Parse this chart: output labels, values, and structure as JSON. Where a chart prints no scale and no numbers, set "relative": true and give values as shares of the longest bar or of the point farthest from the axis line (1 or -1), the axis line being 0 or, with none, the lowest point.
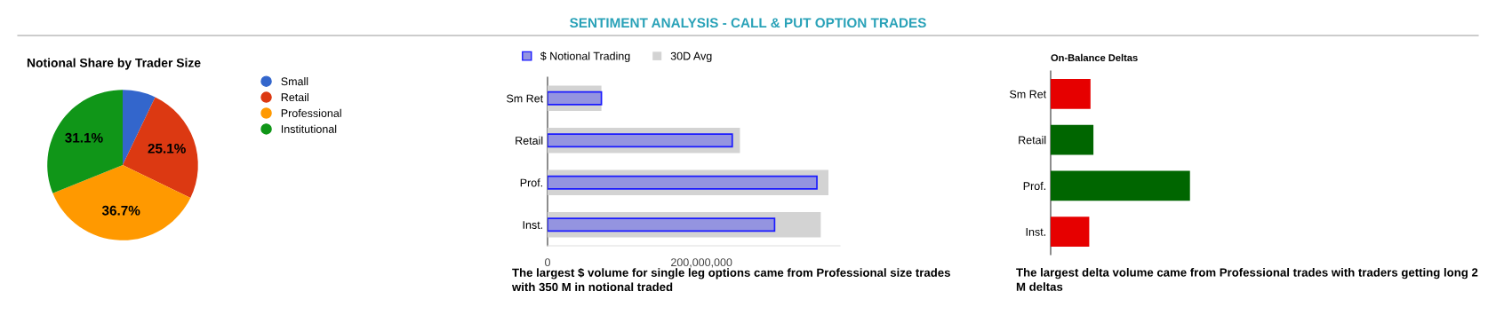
{
  "chart_data": [
    {
      "type": "other",
      "title": "SENTIMENT ANALYSIS - CALL & PUT OPTION TRADES"
    },
    {
      "type": "pie",
      "title": "Notional Share by Trader Size",
      "categories": [
        "Small",
        "Retail",
        "Professional",
        "Institutional"
      ],
      "values": [
        7.1,
        25.1,
        36.7,
        31.1
      ],
      "value_labels": [
        null,
        "25.1%",
        "36.7%",
        "31.1%"
      ],
      "colors": [
        "#3366cc",
        "#dc3912",
        "#ff9900",
        "#109618"
      ],
      "legend": "right"
    },
    {
      "type": "bar",
      "orientation": "horizontal",
      "categories": [
        "Sm Ret",
        "Retail",
        "Prof.",
        "Inst."
      ],
      "series": [
        {
          "name": "$ Notional Trading",
          "color": "#9494e0",
          "values": [
            70000000,
            240000000,
            350000000,
            295000000
          ]
        },
        {
          "name": "30D Avg",
          "color": "#d3d3d3",
          "values": [
            70000000,
            250000000,
            365000000,
            355000000
          ]
        }
      ],
      "xlim": [
        0,
        380000000
      ],
      "xticks": [
        {
          "value": 0,
          "label": "0"
        },
        {
          "value": 200000000,
          "label": "200,000,000"
        }
      ],
      "legend": "top",
      "grid": false,
      "annotations": [
        "The largest $ volume for single leg options came from Professional size trades with 350 M in notional traded"
      ]
    },
    {
      "type": "bar",
      "orientation": "horizontal",
      "relative": true,
      "title": "On-Balance Deltas",
      "categories": [
        "Sm Ret",
        "Retail",
        "Prof.",
        "Inst."
      ],
      "values": [
        0.286,
        0.307,
        1,
        0.277
      ],
      "colors": [
        "#e60000",
        "#006600",
        "#006600",
        "#e60000"
      ],
      "grid": false,
      "annotations": [
        "The largest delta volume came from Professional trades with traders getting long 2 M deltas"
      ]
    }
  ]
}
